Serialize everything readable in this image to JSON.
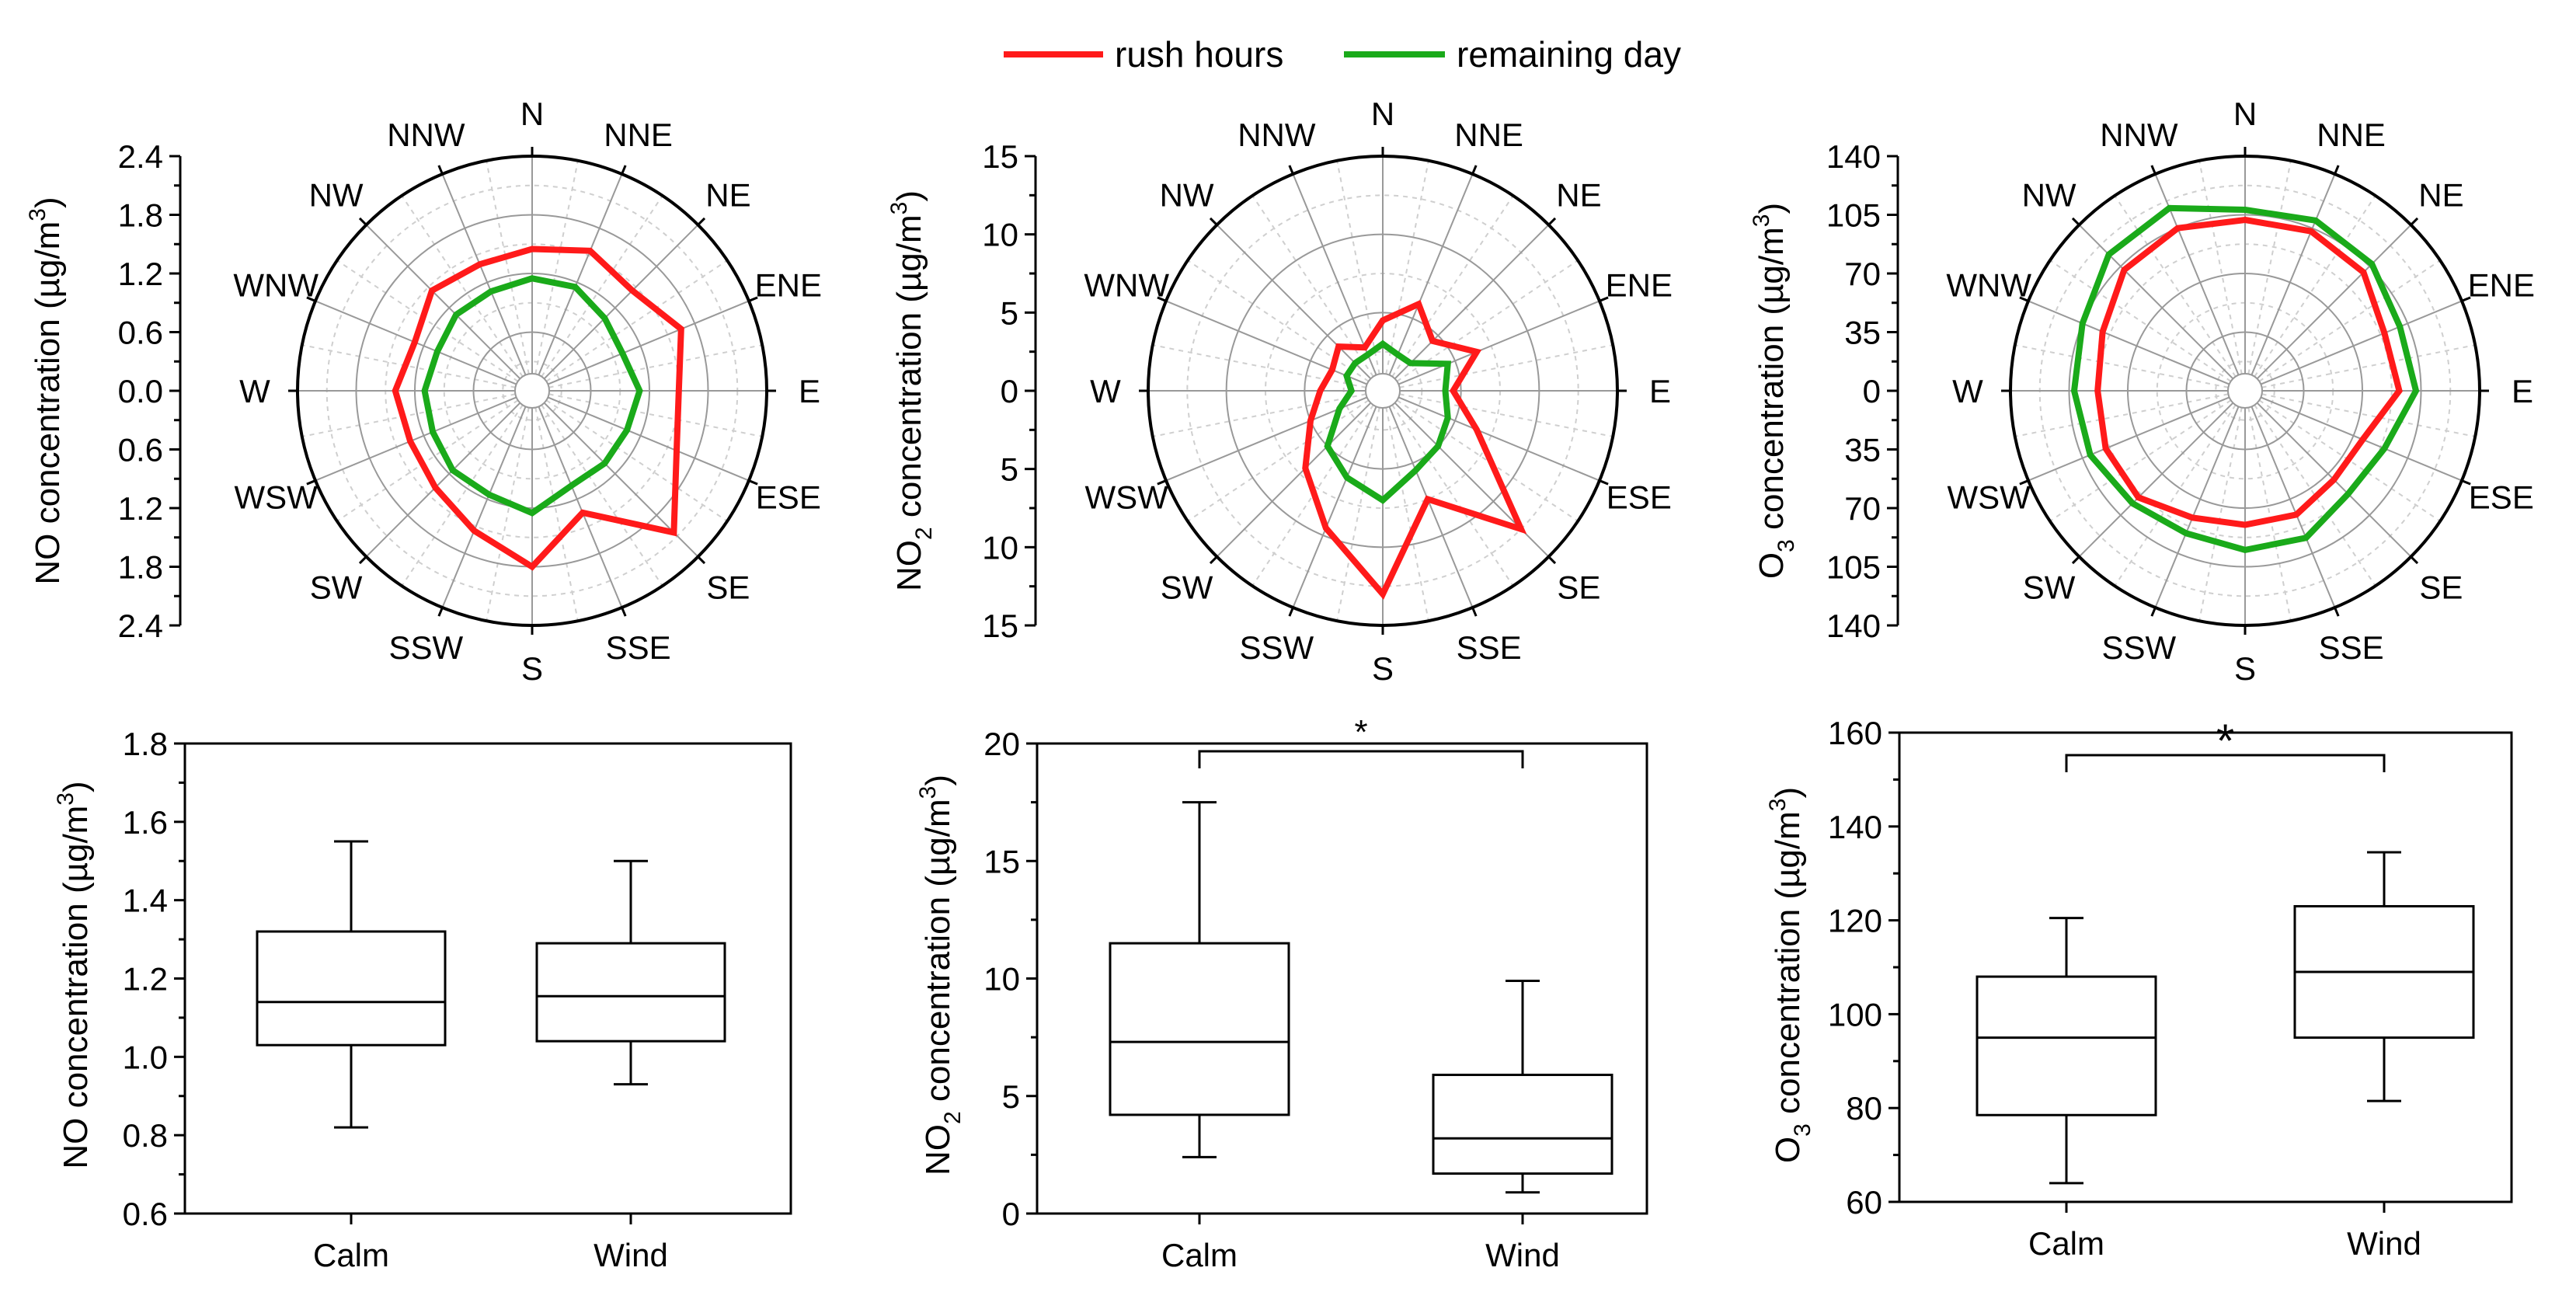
{
  "legend": {
    "items": [
      {
        "label": "rush hours",
        "color": "#ff1a1a"
      },
      {
        "label": "remaining day",
        "color": "#1aaa1a"
      }
    ]
  },
  "directions": [
    "N",
    "NNE",
    "NE",
    "ENE",
    "E",
    "ESE",
    "SE",
    "SSE",
    "S",
    "SSW",
    "SW",
    "WSW",
    "W",
    "WNW",
    "NW",
    "NNW"
  ],
  "chart_data": [
    {
      "type": "radar",
      "id": "no-rose",
      "ylabel": "NO concentration (µg/m3)",
      "ylabel_main": "NO concentration (µg/m",
      "ylabel_sup": "3",
      "ylabel_end": ")",
      "rmax": 2.4,
      "rings": [
        0.6,
        1.2,
        1.8,
        2.4
      ],
      "tick_labels": [
        "2.4",
        "1.8",
        "1.2",
        "0.6",
        "0.0",
        "0.6",
        "1.2",
        "1.8",
        "2.4"
      ],
      "series": [
        {
          "name": "rush hours",
          "color": "#ff1a1a",
          "values": [
            1.45,
            1.55,
            1.45,
            1.65,
            1.5,
            1.6,
            2.05,
            1.35,
            1.8,
            1.55,
            1.4,
            1.35,
            1.4,
            1.3,
            1.45,
            1.4
          ]
        },
        {
          "name": "remaining day",
          "color": "#1aaa1a",
          "values": [
            1.15,
            1.15,
            1.05,
            1.0,
            1.1,
            1.05,
            1.05,
            1.05,
            1.25,
            1.15,
            1.15,
            1.1,
            1.1,
            1.05,
            1.1,
            1.1
          ]
        }
      ]
    },
    {
      "type": "radar",
      "id": "no2-rose",
      "ylabel": "NO2 concentration (µg/m3)",
      "ylabel_main": "NO",
      "ylabel_sub": "2",
      "ylabel_mid": " concentration (µg/m",
      "ylabel_sup": "3",
      "ylabel_end": ")",
      "rmax": 15,
      "rings": [
        5,
        10,
        15
      ],
      "tick_labels": [
        "15",
        "10",
        "5",
        "0",
        "5",
        "10",
        "15"
      ],
      "series": [
        {
          "name": "rush hours",
          "color": "#ff1a1a",
          "values": [
            4.5,
            6,
            4.5,
            6.5,
            4.5,
            6.5,
            12.5,
            7.5,
            13,
            9.5,
            7,
            5,
            4,
            3.5,
            4,
            3
          ]
        },
        {
          "name": "remaining day",
          "color": "#1aaa1a",
          "values": [
            3,
            2.5,
            2.5,
            4.5,
            4,
            4.5,
            5,
            5.5,
            7,
            6,
            5,
            3,
            2,
            2.5,
            2.5,
            2.5
          ]
        }
      ]
    },
    {
      "type": "radar",
      "id": "o3-rose",
      "ylabel": "O3 concentration (µg/m3)",
      "ylabel_main": "O",
      "ylabel_sub": "3",
      "ylabel_mid": " concentration (µg/m",
      "ylabel_sup": "3",
      "ylabel_end": ")",
      "rmax": 140,
      "rings": [
        35,
        70,
        105,
        140
      ],
      "tick_labels": [
        "140",
        "105",
        "70",
        "35",
        "0",
        "35",
        "70",
        "105",
        "140"
      ],
      "series": [
        {
          "name": "rush hours",
          "color": "#ff1a1a",
          "values": [
            102,
            103,
            100,
            90,
            92,
            76,
            75,
            80,
            80,
            82,
            90,
            90,
            88,
            92,
            102,
            105
          ]
        },
        {
          "name": "remaining day",
          "color": "#1aaa1a",
          "values": [
            108,
            110,
            107,
            100,
            102,
            90,
            87,
            95,
            95,
            92,
            95,
            100,
            102,
            105,
            115,
            118
          ]
        }
      ]
    },
    {
      "type": "boxplot",
      "id": "no-box",
      "ylabel": "NO concentration (µg/m3)",
      "ylabel_main": "NO concentration (µg/m",
      "ylabel_sup": "3",
      "ylabel_end": ")",
      "ylim": [
        0.6,
        1.8
      ],
      "yticks": [
        "0.6",
        "0.8",
        "1.0",
        "1.2",
        "1.4",
        "1.6",
        "1.8"
      ],
      "categories": [
        "Calm",
        "Wind"
      ],
      "boxes": [
        {
          "whislo": 0.82,
          "q1": 1.03,
          "med": 1.14,
          "q3": 1.32,
          "whishi": 1.55
        },
        {
          "whislo": 0.93,
          "q1": 1.04,
          "med": 1.155,
          "q3": 1.29,
          "whishi": 1.5
        }
      ],
      "significance": ""
    },
    {
      "type": "boxplot",
      "id": "no2-box",
      "ylabel": "NO2 concentration (µg/m3)",
      "ylabel_main": "NO",
      "ylabel_sub": "2",
      "ylabel_mid": " concentration (µg/m",
      "ylabel_sup": "3",
      "ylabel_end": ")",
      "ylim": [
        0,
        20
      ],
      "yticks": [
        "0",
        "5",
        "10",
        "15",
        "20"
      ],
      "categories": [
        "Calm",
        "Wind"
      ],
      "boxes": [
        {
          "whislo": 2.4,
          "q1": 4.2,
          "med": 7.3,
          "q3": 11.5,
          "whishi": 17.5
        },
        {
          "whislo": 0.9,
          "q1": 1.7,
          "med": 3.2,
          "q3": 5.9,
          "whishi": 9.9
        }
      ],
      "significance": "*"
    },
    {
      "type": "boxplot",
      "id": "o3-box",
      "ylabel": "O3 concentration (µg/m3)",
      "ylabel_main": "O",
      "ylabel_sub": "3",
      "ylabel_mid": " concentration (µg/m",
      "ylabel_sup": "3",
      "ylabel_end": ")",
      "ylim": [
        60,
        160
      ],
      "yticks": [
        "60",
        "80",
        "100",
        "120",
        "140",
        "160"
      ],
      "categories": [
        "Calm",
        "Wind"
      ],
      "boxes": [
        {
          "whislo": 64,
          "q1": 78.5,
          "med": 95,
          "q3": 108,
          "whishi": 120.5
        },
        {
          "whislo": 81.5,
          "q1": 95,
          "med": 109,
          "q3": 123,
          "whishi": 134.5
        }
      ],
      "significance": "*"
    }
  ]
}
